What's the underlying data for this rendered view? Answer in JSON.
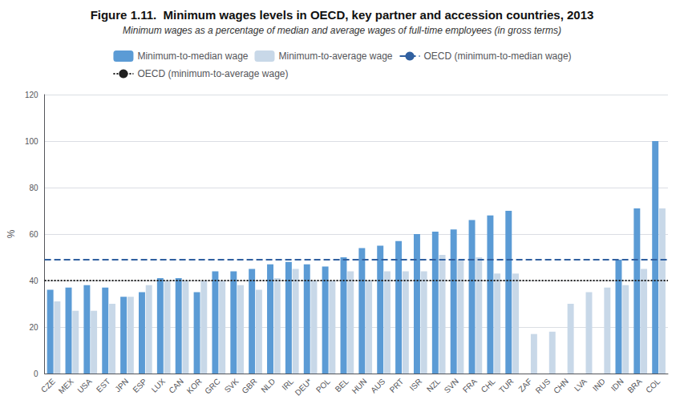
{
  "chart_data": {
    "type": "bar",
    "title": "Figure 1.11.  Minimum wages levels in OECD, key partner and accession countries, 2013",
    "subtitle": "Minimum wages as a percentage of median and average wages of full-time employees (in gross terms)",
    "ylabel": "%",
    "categories": [
      "CZE",
      "MEX",
      "USA",
      "EST",
      "JPN",
      "ESP",
      "LUX",
      "CAN",
      "KOR",
      "GRC",
      "SVK",
      "GBR",
      "NLD",
      "IRL",
      "DEU*",
      "POL",
      "BEL",
      "HUN",
      "AUS",
      "PRT",
      "ISR",
      "NZL",
      "SVN",
      "FRA",
      "CHL",
      "TUR",
      "ZAF",
      "RUS",
      "CHN",
      "LVA",
      "IND",
      "IDN",
      "BRA",
      "COL"
    ],
    "series": [
      {
        "name": "Minimum-to-median wage",
        "color": "#5b9bd5",
        "values": [
          36,
          37,
          38,
          37,
          33,
          35,
          41,
          41,
          35,
          44,
          44,
          45,
          47,
          48,
          47,
          46,
          50,
          54,
          55,
          57,
          60,
          61,
          62,
          66,
          68,
          70,
          0,
          0,
          0,
          0,
          0,
          49,
          71,
          100
        ]
      },
      {
        "name": "Minimum-to-average wage",
        "color": "#c8d8e8",
        "values": [
          31,
          27,
          27,
          30,
          33,
          38,
          40,
          40,
          40,
          40,
          38,
          36,
          41,
          45,
          40,
          40,
          44,
          40,
          44,
          44,
          44,
          51,
          49,
          50,
          43,
          43,
          17,
          18,
          30,
          35,
          37,
          38,
          45,
          71
        ]
      }
    ],
    "reference_lines": [
      {
        "name": "OECD (minimum-to-median wage)",
        "value": 49,
        "color": "#3060a0",
        "line_style": "dashed"
      },
      {
        "name": "OECD (minimum-to-average wage)",
        "value": 40,
        "color": "#202020",
        "line_style": "dotted"
      }
    ],
    "ylim": [
      0,
      120
    ],
    "yticks": [
      0,
      20,
      40,
      60,
      80,
      100,
      120
    ],
    "grid": true,
    "legend": "top"
  }
}
